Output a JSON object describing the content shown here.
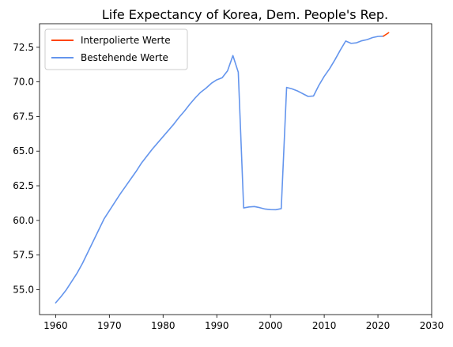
{
  "chart_data": {
    "type": "line",
    "title": "Life Expectancy of Korea, Dem. People's Rep.",
    "xlabel": "",
    "ylabel": "",
    "xlim": [
      1957,
      2030
    ],
    "ylim": [
      53.2,
      74.2
    ],
    "x_ticks": [
      1960,
      1970,
      1980,
      1990,
      2000,
      2010,
      2020,
      2030
    ],
    "y_ticks": [
      55.0,
      57.5,
      60.0,
      62.5,
      65.0,
      67.5,
      70.0,
      72.5
    ],
    "x_tick_labels": [
      "1960",
      "1970",
      "1980",
      "1990",
      "2000",
      "2010",
      "2020",
      "2030"
    ],
    "y_tick_labels": [
      "55.0",
      "57.5",
      "60.0",
      "62.5",
      "65.0",
      "67.5",
      "70.0",
      "72.5"
    ],
    "grid": false,
    "legend_position": "top-left",
    "series": [
      {
        "name": "Interpolierte Werte",
        "color": "#ff4500",
        "x": [
          2021,
          2022
        ],
        "y": [
          73.3,
          73.55
        ]
      },
      {
        "name": "Bestehende Werte",
        "color": "#6495ed",
        "x": [
          1960,
          1961,
          1962,
          1963,
          1964,
          1965,
          1966,
          1967,
          1968,
          1969,
          1970,
          1971,
          1972,
          1973,
          1974,
          1975,
          1976,
          1977,
          1978,
          1979,
          1980,
          1981,
          1982,
          1983,
          1984,
          1985,
          1986,
          1987,
          1988,
          1989,
          1990,
          1991,
          1992,
          1993,
          1994,
          1995,
          1996,
          1997,
          1998,
          1999,
          2000,
          2001,
          2002,
          2003,
          2004,
          2005,
          2006,
          2007,
          2008,
          2009,
          2010,
          2011,
          2012,
          2013,
          2014,
          2015,
          2016,
          2017,
          2018,
          2019,
          2020,
          2021
        ],
        "y": [
          54.05,
          54.5,
          55.0,
          55.6,
          56.2,
          56.9,
          57.7,
          58.5,
          59.3,
          60.1,
          60.7,
          61.3,
          61.9,
          62.45,
          63.0,
          63.55,
          64.15,
          64.65,
          65.15,
          65.6,
          66.05,
          66.5,
          66.95,
          67.45,
          67.9,
          68.4,
          68.85,
          69.25,
          69.55,
          69.9,
          70.15,
          70.3,
          70.8,
          71.9,
          70.7,
          60.9,
          60.97,
          61.0,
          60.92,
          60.82,
          60.78,
          60.77,
          60.85,
          69.6,
          69.5,
          69.35,
          69.15,
          68.95,
          68.98,
          69.75,
          70.4,
          70.95,
          71.6,
          72.3,
          72.95,
          72.78,
          72.82,
          72.97,
          73.05,
          73.2,
          73.28,
          73.3
        ]
      }
    ]
  }
}
